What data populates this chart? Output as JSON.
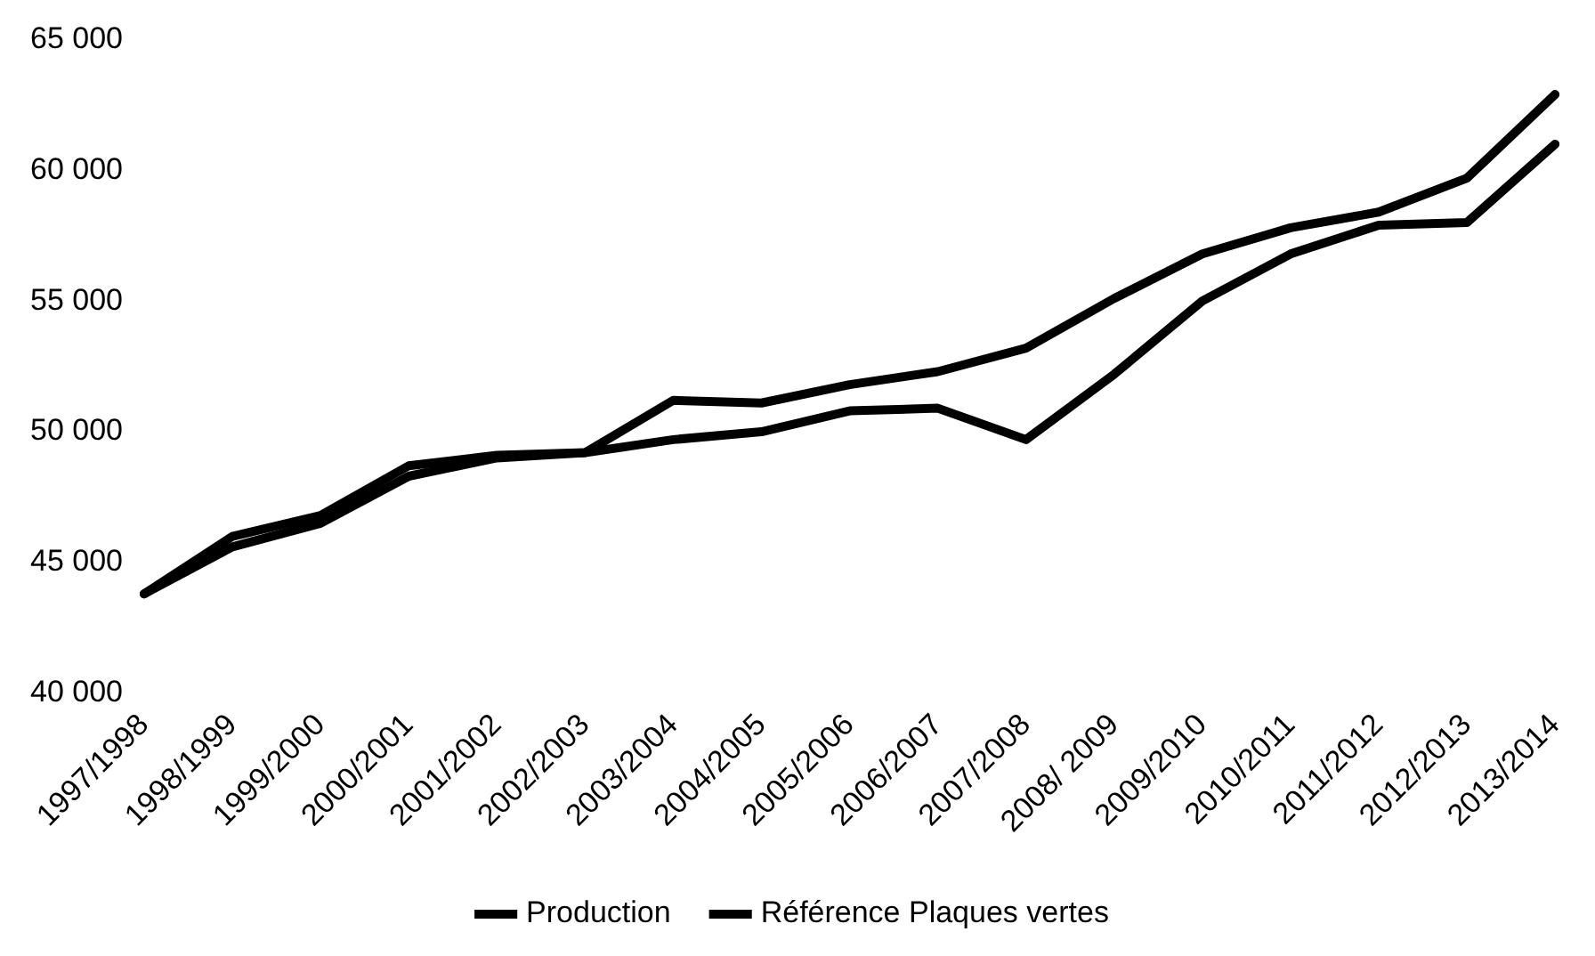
{
  "chart_data": {
    "type": "line",
    "categories": [
      "1997/1998",
      "1998/1999",
      "1999/2000",
      "2000/2001",
      "2001/2002",
      "2002/2003",
      "2003/2004",
      "2004/2005",
      "2005/2006",
      "2006/2007",
      "2007/2008",
      "2008/ 2009",
      "2009/2010",
      "2010/2011",
      "2011/2012",
      "2012/2013",
      "2013/2014"
    ],
    "series": [
      {
        "name": "Production",
        "color": "#000000",
        "values": [
          43800,
          45600,
          46500,
          48300,
          49000,
          49200,
          49700,
          50000,
          50800,
          50900,
          49700,
          52200,
          55000,
          56800,
          57900,
          58000,
          61000
        ]
      },
      {
        "name": "Référence Plaques vertes",
        "color": "#000000",
        "values": [
          43800,
          46000,
          46800,
          48700,
          49100,
          49200,
          51200,
          51100,
          51800,
          52300,
          53200,
          55100,
          56800,
          57800,
          58400,
          59700,
          62900
        ]
      }
    ],
    "ylim": [
      40000,
      65000
    ],
    "yticks": [
      {
        "value": 40000,
        "label": "40 000"
      },
      {
        "value": 45000,
        "label": "45 000"
      },
      {
        "value": 50000,
        "label": "50 000"
      },
      {
        "value": 55000,
        "label": "55 000"
      },
      {
        "value": 60000,
        "label": "60 000"
      },
      {
        "value": 65000,
        "label": "65 000"
      }
    ],
    "grid": false,
    "legend": "bottom",
    "marker": "none",
    "line_style": "solid"
  }
}
